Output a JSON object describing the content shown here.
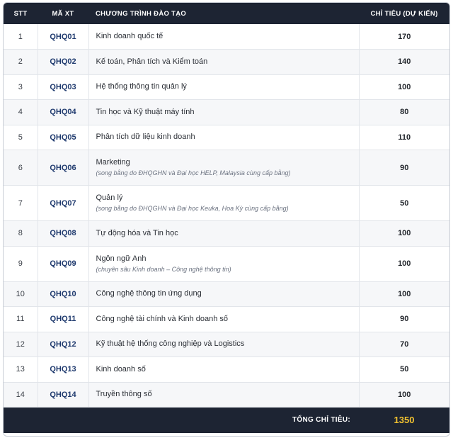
{
  "header": {
    "stt": "STT",
    "code": "MÃ XT",
    "program": "CHƯƠNG TRÌNH ĐÀO TẠO",
    "quota": "CHỈ TIÊU (DỰ KIẾN)"
  },
  "rows": [
    {
      "stt": "1",
      "code": "QHQ01",
      "name": "Kinh doanh quốc tế",
      "note": "",
      "quota": "170"
    },
    {
      "stt": "2",
      "code": "QHQ02",
      "name": "Kế toán, Phân tích và Kiểm toán",
      "note": "",
      "quota": "140"
    },
    {
      "stt": "3",
      "code": "QHQ03",
      "name": "Hệ thống thông tin quản lý",
      "note": "",
      "quota": "100"
    },
    {
      "stt": "4",
      "code": "QHQ04",
      "name": "Tin học và Kỹ thuật máy tính",
      "note": "",
      "quota": "80"
    },
    {
      "stt": "5",
      "code": "QHQ05",
      "name": "Phân tích dữ liệu kinh doanh",
      "note": "",
      "quota": "110"
    },
    {
      "stt": "6",
      "code": "QHQ06",
      "name": "Marketing",
      "note": "(song bằng do ĐHQGHN và Đại học HELP, Malaysia cùng cấp bằng)",
      "quota": "90"
    },
    {
      "stt": "7",
      "code": "QHQ07",
      "name": "Quản lý",
      "note": "(song bằng do ĐHQGHN và Đại học Keuka, Hoa Kỳ cùng cấp bằng)",
      "quota": "50"
    },
    {
      "stt": "8",
      "code": "QHQ08",
      "name": "Tự động hóa và Tin học",
      "note": "",
      "quota": "100"
    },
    {
      "stt": "9",
      "code": "QHQ09",
      "name": "Ngôn ngữ Anh",
      "note": "(chuyên sâu Kinh doanh – Công nghệ thông tin)",
      "quota": "100"
    },
    {
      "stt": "10",
      "code": "QHQ10",
      "name": "Công nghệ thông tin ứng dụng",
      "note": "",
      "quota": "100"
    },
    {
      "stt": "11",
      "code": "QHQ11",
      "name": "Công nghệ tài chính và Kinh doanh số",
      "note": "",
      "quota": "90"
    },
    {
      "stt": "12",
      "code": "QHQ12",
      "name": "Kỹ thuật hệ thống công nghiệp và Logistics",
      "note": "",
      "quota": "70"
    },
    {
      "stt": "13",
      "code": "QHQ13",
      "name": "Kinh doanh số",
      "note": "",
      "quota": "50"
    },
    {
      "stt": "14",
      "code": "QHQ14",
      "name": "Truyền thông số",
      "note": "",
      "quota": "100"
    }
  ],
  "footer": {
    "total_label": "TỔNG CHỈ TIÊU:",
    "total_value": "1350"
  },
  "colors": {
    "header_bg": "#1d2433",
    "code_text": "#1f3a6e",
    "total_value": "#f2c230"
  }
}
